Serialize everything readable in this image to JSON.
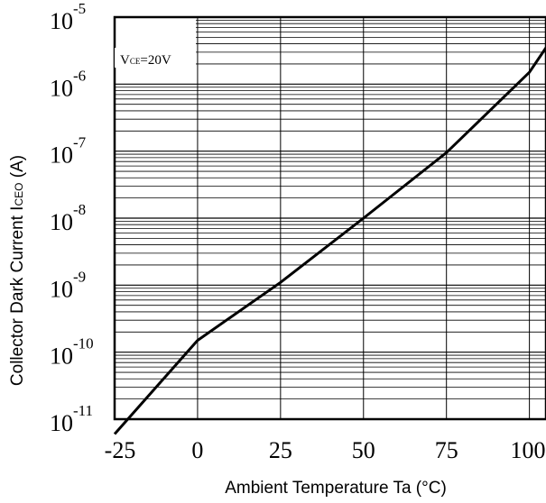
{
  "chart_data": {
    "type": "line",
    "xlabel": "Ambient Temperature Ta (°C)",
    "ylabel": {
      "prefix": "Collector Dark Current I",
      "sub": "CEO",
      "suffix": " (A)"
    },
    "annotation": {
      "main": "V",
      "sub": "CE",
      "value": "=20V"
    },
    "x_ticks": [
      "-25",
      "0",
      "25",
      "50",
      "75",
      "100"
    ],
    "x_tick_values": [
      -25,
      0,
      25,
      50,
      75,
      100
    ],
    "y_ticks": [
      {
        "base": "10",
        "exp": "-5",
        "value": -5
      },
      {
        "base": "10",
        "exp": "-6",
        "value": -6
      },
      {
        "base": "10",
        "exp": "-7",
        "value": -7
      },
      {
        "base": "10",
        "exp": "-8",
        "value": -8
      },
      {
        "base": "10",
        "exp": "-9",
        "value": -9
      },
      {
        "base": "10",
        "exp": "-10",
        "value": -10
      },
      {
        "base": "10",
        "exp": "-11",
        "value": -11
      }
    ],
    "xlim": [
      -25,
      105
    ],
    "ylim_log10": [
      -11,
      -5
    ],
    "y_scale": "log",
    "grid": true,
    "series": [
      {
        "x": [
          -25,
          0,
          25,
          50,
          75,
          100,
          105
        ],
        "y": [
          6e-12,
          1.5e-10,
          1.1e-09,
          1e-08,
          9.5e-08,
          1.5e-06,
          3.5e-06
        ]
      }
    ]
  }
}
